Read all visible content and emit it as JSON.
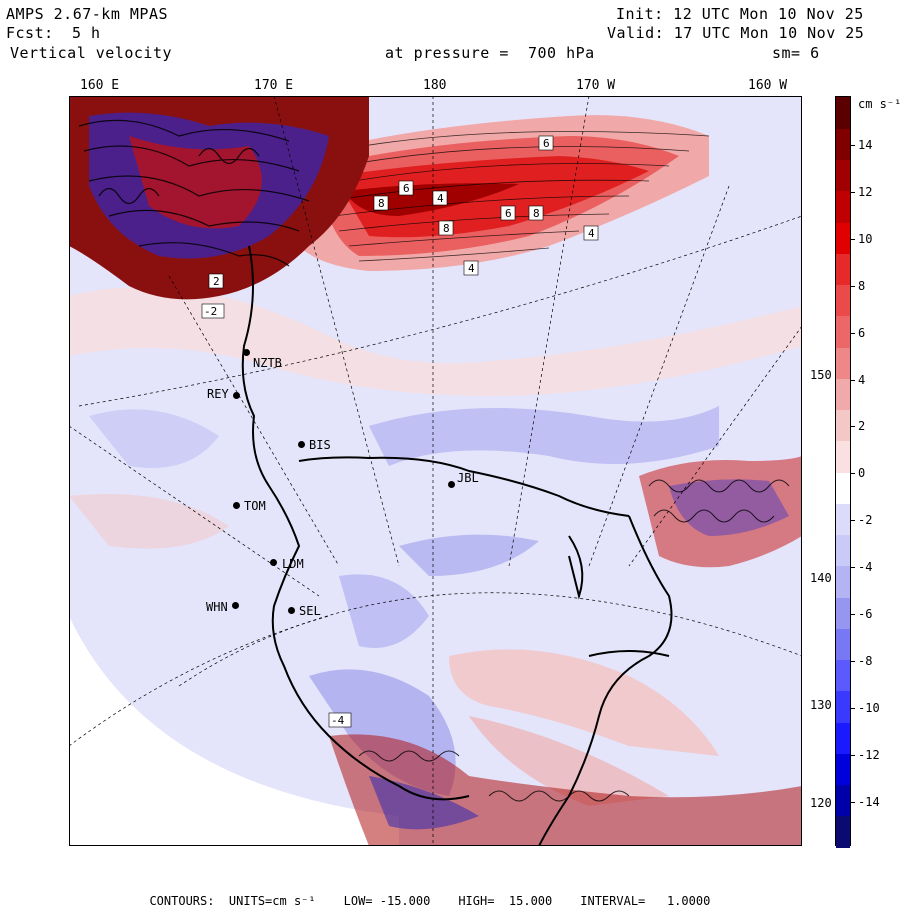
{
  "header": {
    "model": "AMPS 2.67-km MPAS",
    "fcst_label": "Fcst:",
    "fcst_value": "5 h",
    "field": "Vertical velocity",
    "init": "Init: 12 UTC Mon 10 Nov 25",
    "valid": "Valid: 17 UTC Mon 10 Nov 25",
    "pressure": "at pressure =  700 hPa",
    "smoothing": "sm= 6"
  },
  "longitude_labels": [
    "160 E",
    "170 E",
    "180",
    "170 W",
    "160 W"
  ],
  "latitude_labels": [
    "150 W",
    "140 W",
    "130 W",
    "120 W"
  ],
  "stations": [
    "NZTB",
    "REY",
    "BIS",
    "JBL",
    "TOM",
    "LDM",
    "WHN",
    "SEL"
  ],
  "colorbar": {
    "units": "cm s⁻¹",
    "labels": [
      "14",
      "12",
      "10",
      "8",
      "6",
      "4",
      "2",
      "0",
      "-2",
      "-4",
      "-6",
      "-8",
      "-10",
      "-12",
      "-14"
    ],
    "colors": [
      "#0a0a70",
      "#0000a8",
      "#0000dd",
      "#1a1aff",
      "#3a3aff",
      "#5a5aff",
      "#7878f5",
      "#9696f0",
      "#b4b4f5",
      "#cacaf8",
      "#dcdcfa",
      "#ffffff",
      "#fae0e0",
      "#f5c8c8",
      "#f0aaaa",
      "#ee8888",
      "#ec6868",
      "#ea4a4a",
      "#e62a2a",
      "#e00000",
      "#c00000",
      "#a00000",
      "#800000",
      "#5a0000"
    ]
  },
  "footer": {
    "contours": "CONTOURS:  UNITS=cm s⁻¹",
    "low": "LOW= -15.000",
    "high": "HIGH=  15.000",
    "interval": "INTERVAL=   1.0000"
  },
  "contour_box_labels": [
    "4",
    "6",
    "8",
    "4",
    "6",
    "8",
    "6",
    "8",
    "4",
    "2",
    "-2",
    "-4"
  ]
}
